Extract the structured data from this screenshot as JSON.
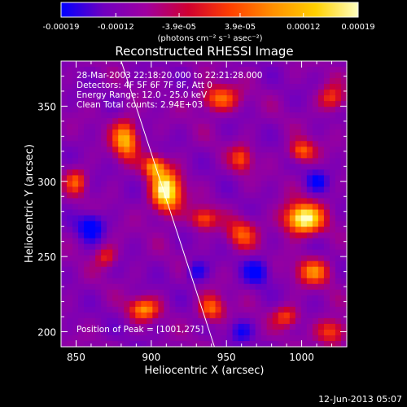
{
  "chart_data": {
    "type": "heatmap",
    "title": "Reconstructed RHESSI Image",
    "xlabel": "Heliocentric X (arcsec)",
    "ylabel": "Heliocentric Y (arcsec)",
    "xlim": [
      840,
      1030
    ],
    "ylim": [
      190,
      380
    ],
    "xticks": [
      850,
      900,
      950,
      1000
    ],
    "yticks": [
      200,
      250,
      300,
      350
    ],
    "colorbar": {
      "ticks": [
        "-0.00019",
        "-0.00012",
        "-3.9e-05",
        "3.9e-05",
        "0.00012",
        "0.00019"
      ],
      "tick_values": [
        -0.00019,
        -0.00012,
        -3.9e-05,
        3.9e-05,
        0.00012,
        0.00019
      ],
      "range": [
        -0.00019,
        0.00019
      ],
      "unit_label": "(photons cm⁻² s⁻¹ asec⁻²)",
      "colormap": [
        "#0000ff",
        "#7000c0",
        "#a000a0",
        "#d00030",
        "#ff4000",
        "#ff9000",
        "#ffd000",
        "#ffffc0"
      ]
    },
    "annotations": [
      "28-Mar-2003 22:18:20.000 to 22:21:28.000",
      "Detectors: 4F 5F 6F 7F 8F, Att 0",
      "Energy Range: 12.0 - 25.0 keV",
      "Clean     Total counts: 2.94E+03",
      "Position of Peak = [1001,275]"
    ],
    "peak": [
      1001,
      275
    ],
    "blobs": [
      {
        "x": 1001,
        "y": 275,
        "sx": 9,
        "sy": 7,
        "a": 1.0
      },
      {
        "x": 910,
        "y": 293,
        "sx": 7,
        "sy": 10,
        "a": 0.95
      },
      {
        "x": 902,
        "y": 310,
        "sx": 5,
        "sy": 5,
        "a": 0.6
      },
      {
        "x": 883,
        "y": 328,
        "sx": 6,
        "sy": 9,
        "a": 0.72
      },
      {
        "x": 935,
        "y": 275,
        "sx": 6,
        "sy": 5,
        "a": 0.5
      },
      {
        "x": 960,
        "y": 265,
        "sx": 7,
        "sy": 7,
        "a": 0.45
      },
      {
        "x": 1008,
        "y": 240,
        "sx": 8,
        "sy": 6,
        "a": 0.55
      },
      {
        "x": 895,
        "y": 215,
        "sx": 7,
        "sy": 5,
        "a": 0.6
      },
      {
        "x": 940,
        "y": 215,
        "sx": 6,
        "sy": 6,
        "a": 0.55
      },
      {
        "x": 1000,
        "y": 320,
        "sx": 6,
        "sy": 5,
        "a": 0.55
      },
      {
        "x": 945,
        "y": 355,
        "sx": 9,
        "sy": 6,
        "a": 0.55
      },
      {
        "x": 1020,
        "y": 200,
        "sx": 7,
        "sy": 6,
        "a": 0.5
      },
      {
        "x": 850,
        "y": 300,
        "sx": 5,
        "sy": 6,
        "a": 0.45
      },
      {
        "x": 870,
        "y": 250,
        "sx": 5,
        "sy": 5,
        "a": 0.4
      },
      {
        "x": 990,
        "y": 210,
        "sx": 6,
        "sy": 5,
        "a": 0.45
      },
      {
        "x": 1020,
        "y": 355,
        "sx": 6,
        "sy": 6,
        "a": 0.45
      },
      {
        "x": 960,
        "y": 315,
        "sx": 5,
        "sy": 6,
        "a": 0.45
      },
      {
        "x": 930,
        "y": 240,
        "sx": 5,
        "sy": 5,
        "a": -0.35
      },
      {
        "x": 860,
        "y": 270,
        "sx": 6,
        "sy": 6,
        "a": -0.5
      },
      {
        "x": 970,
        "y": 240,
        "sx": 6,
        "sy": 6,
        "a": -0.4
      },
      {
        "x": 1010,
        "y": 300,
        "sx": 5,
        "sy": 5,
        "a": -0.35
      },
      {
        "x": 960,
        "y": 200,
        "sx": 5,
        "sy": 5,
        "a": -0.3
      }
    ],
    "limb_line": [
      [
        880,
        380
      ],
      [
        942,
        190
      ]
    ]
  },
  "footer": {
    "date": "12-Jun-2013 05:07"
  }
}
